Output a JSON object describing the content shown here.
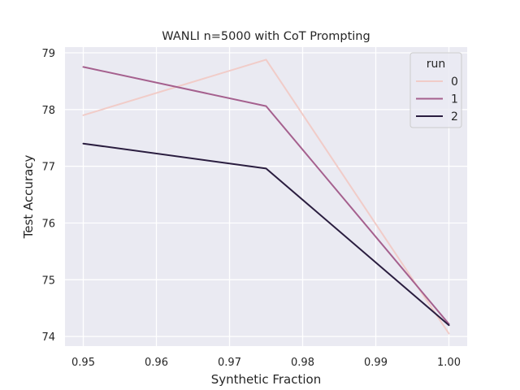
{
  "chart_data": {
    "type": "line",
    "title": "WANLI n=5000 with CoT Prompting",
    "xlabel": "Synthetic Fraction",
    "ylabel": "Test Accuracy",
    "xlim": [
      0.9475,
      1.0025
    ],
    "ylim": [
      73.83,
      79.1
    ],
    "xticks": [
      0.95,
      0.96,
      0.97,
      0.98,
      0.99,
      1.0
    ],
    "xtick_labels": [
      "0.95",
      "0.96",
      "0.97",
      "0.98",
      "0.99",
      "1.00"
    ],
    "yticks": [
      74,
      75,
      76,
      77,
      78,
      79
    ],
    "ytick_labels": [
      "74",
      "75",
      "76",
      "77",
      "78",
      "79"
    ],
    "grid": true,
    "legend": {
      "title": "run",
      "position": "top-right"
    },
    "x": [
      0.95,
      0.975,
      1.0
    ],
    "series": [
      {
        "name": "0",
        "color": "#f1ccc8",
        "values": [
          77.9,
          78.88,
          74.05
        ]
      },
      {
        "name": "1",
        "color": "#a5608e",
        "values": [
          78.75,
          78.06,
          74.22
        ]
      },
      {
        "name": "2",
        "color": "#2a1d3f",
        "values": [
          77.4,
          76.96,
          74.2
        ]
      }
    ]
  }
}
